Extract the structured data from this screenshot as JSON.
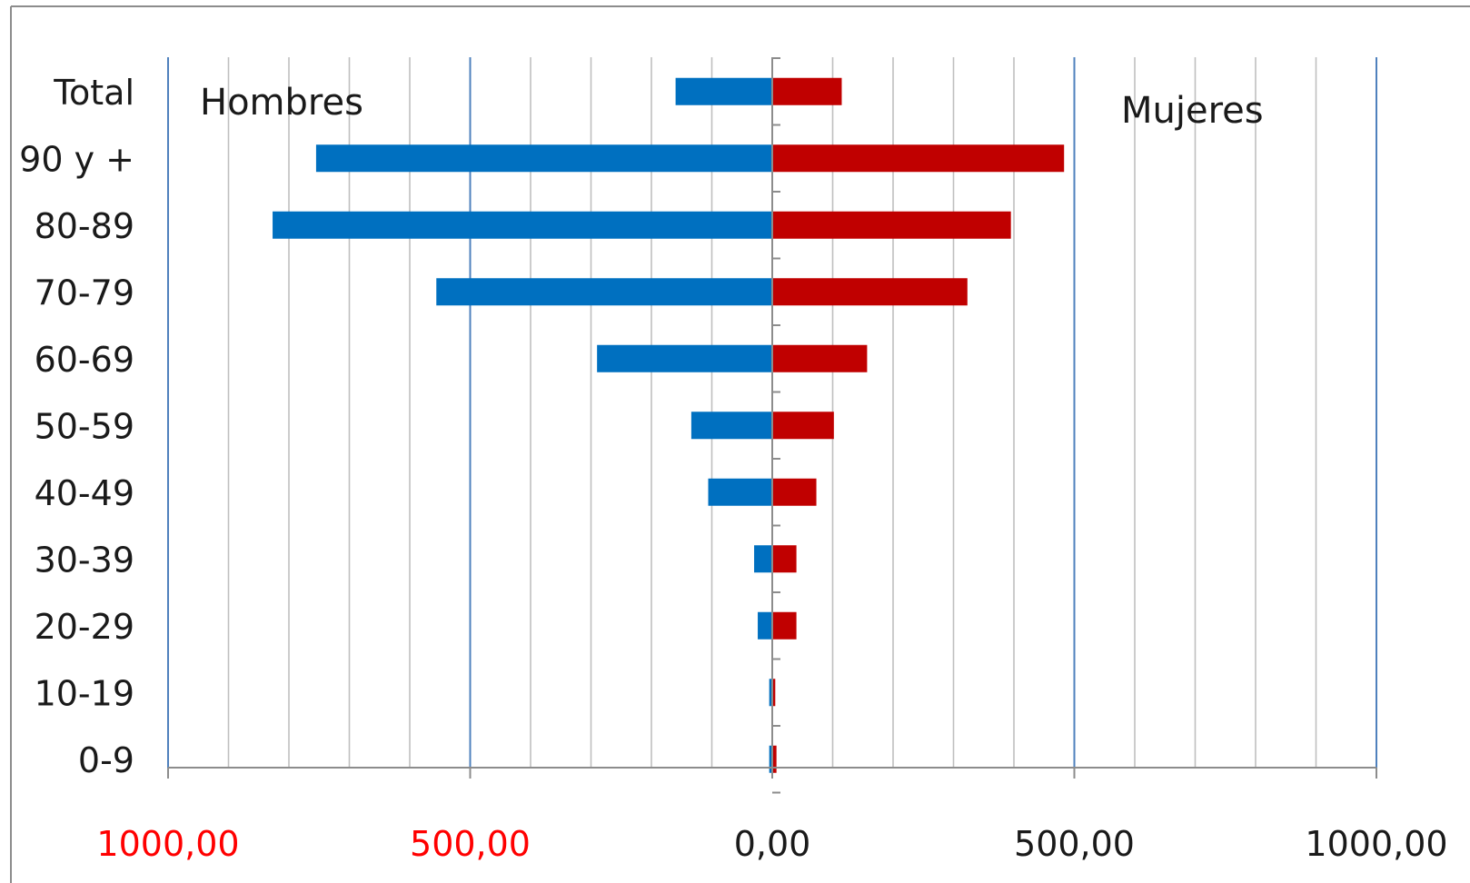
{
  "chart_data": {
    "type": "bar",
    "orientation": "horizontal",
    "chart_style": "population-pyramid",
    "categories": [
      "Total",
      "90 y +",
      "80-89",
      "70-79",
      "60-69",
      "50-59",
      "40-49",
      "30-39",
      "20-29",
      "10-19",
      "0-9"
    ],
    "series": [
      {
        "name": "Hombres",
        "color": "#0070C0",
        "values": [
          160,
          755,
          827,
          556,
          290,
          134,
          106,
          30,
          24,
          5,
          5
        ]
      },
      {
        "name": "Mujeres",
        "color": "#C00000",
        "values": [
          115,
          483,
          395,
          323,
          157,
          102,
          73,
          40,
          40,
          5,
          7
        ]
      }
    ],
    "side_labels": {
      "left": "Hombres",
      "right": "Mujeres"
    },
    "xlim": [
      -1000,
      1000
    ],
    "x_ticks": [
      {
        "value": -1000,
        "label": "1000,00",
        "color": "#FF0000"
      },
      {
        "value": -500,
        "label": "500,00",
        "color": "#FF0000"
      },
      {
        "value": 0,
        "label": "0,00",
        "color": "#1a1a1a"
      },
      {
        "value": 500,
        "label": "500,00",
        "color": "#1a1a1a"
      },
      {
        "value": 1000,
        "label": "1000,00",
        "color": "#1a1a1a"
      }
    ],
    "minor_gridline_step": 100,
    "major_gridline_step": 500,
    "grid": true,
    "colors": {
      "major_grid": "#4F81BD",
      "minor_grid": "#BFBFBF",
      "axis": "#8C8C8C",
      "frame": "#8C8C8C",
      "text": "#1a1a1a"
    }
  }
}
